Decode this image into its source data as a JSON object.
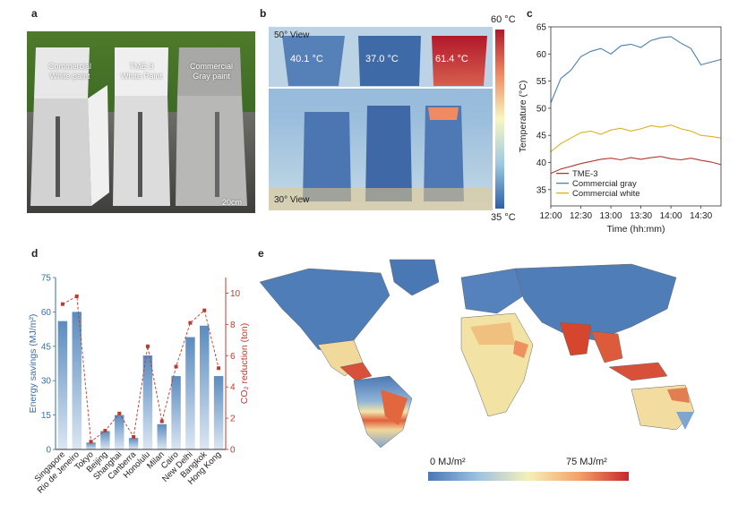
{
  "panels": {
    "a": "a",
    "b": "b",
    "c": "c",
    "d": "d",
    "e": "e"
  },
  "panel_a": {
    "labels": [
      "Commercial\nWhite paint",
      "TME-3\nWhite Paint",
      "Commercial\nGray paint"
    ],
    "scale_bar": "20cm"
  },
  "panel_b": {
    "top_view": "50° View",
    "bottom_view": "30° View",
    "temps": [
      "40.1 °C",
      "37.0 °C",
      "61.4 °C"
    ],
    "colorbar_max": "60 °C",
    "colorbar_min": "35 °C",
    "colors": {
      "hot": "#b2182b",
      "mid": "#f7f7c0",
      "cold": "#2c5fa8"
    }
  },
  "chart_data": [
    {
      "panel": "c",
      "type": "line",
      "xlabel": "Time (hh:mm)",
      "ylabel": "Temperature (°C)",
      "x_ticks": [
        "12:00",
        "12:30",
        "13:00",
        "13:30",
        "14:00",
        "14:30"
      ],
      "y_ticks": [
        "35",
        "40",
        "45",
        "50",
        "55",
        "60",
        "65"
      ],
      "ylim": [
        32,
        65
      ],
      "xlim_minutes": [
        0,
        170
      ],
      "legend_position": "bottom-left",
      "series": [
        {
          "name": "TME-3",
          "color": "#b03a2e",
          "x": [
            0,
            10,
            20,
            30,
            40,
            50,
            60,
            70,
            80,
            90,
            100,
            110,
            120,
            130,
            140,
            150,
            160,
            170
          ],
          "y": [
            38,
            38.8,
            39.3,
            39.8,
            40.2,
            40.6,
            40.8,
            40.5,
            40.9,
            40.6,
            40.9,
            41.1,
            40.7,
            40.5,
            40.8,
            40.4,
            40.1,
            39.6
          ]
        },
        {
          "name": "Commercial gray",
          "color": "#4a7fb0",
          "x": [
            0,
            10,
            20,
            30,
            40,
            50,
            60,
            70,
            80,
            90,
            100,
            110,
            120,
            130,
            140,
            150,
            160,
            170
          ],
          "y": [
            51,
            55.5,
            57,
            59.5,
            60.5,
            61,
            60,
            61.5,
            61.8,
            61.2,
            62.5,
            63,
            63.2,
            62,
            61,
            58,
            58.5,
            59
          ]
        },
        {
          "name": "Commercial white",
          "color": "#e0b020",
          "x": [
            0,
            10,
            20,
            30,
            40,
            50,
            60,
            70,
            80,
            90,
            100,
            110,
            120,
            130,
            140,
            150,
            160,
            170
          ],
          "y": [
            42,
            43.5,
            44.5,
            45.5,
            45.8,
            45.2,
            46,
            46.3,
            45.8,
            46.2,
            46.8,
            46.5,
            46.9,
            46.2,
            45.8,
            45,
            44.8,
            44.5
          ]
        }
      ]
    },
    {
      "panel": "d",
      "type": "bar",
      "categories": [
        "Singapore",
        "Rio de Jeneiro",
        "Tokyo",
        "Beijing",
        "Shanghai",
        "Canberra",
        "Honolulu",
        "Milan",
        "Cairo",
        "New Delhi",
        "Bangkok",
        "Hong Kong"
      ],
      "ylabel": "Energy savings (MJ/m²)",
      "ylabel2": "CO₂ reduction (ton)",
      "y_ticks": [
        "0",
        "15",
        "30",
        "45",
        "60",
        "75"
      ],
      "y2_ticks": [
        "0",
        "2",
        "4",
        "6",
        "8",
        "10"
      ],
      "ylim": [
        0,
        75
      ],
      "y2lim": [
        0,
        11
      ],
      "series": [
        {
          "name": "Energy savings",
          "color": "#4a7fb0",
          "values": [
            56,
            60,
            3,
            8,
            15,
            5,
            41,
            11,
            32,
            49,
            54,
            32
          ]
        },
        {
          "name": "CO₂ reduction",
          "color": "#c0392b",
          "values": [
            9.3,
            9.8,
            0.5,
            1.2,
            2.3,
            0.8,
            6.6,
            1.8,
            5.3,
            8.1,
            8.9,
            5.2
          ]
        }
      ]
    }
  ],
  "panel_e": {
    "colorbar_min": "0 MJ/m²",
    "colorbar_max": "75 MJ/m²"
  }
}
